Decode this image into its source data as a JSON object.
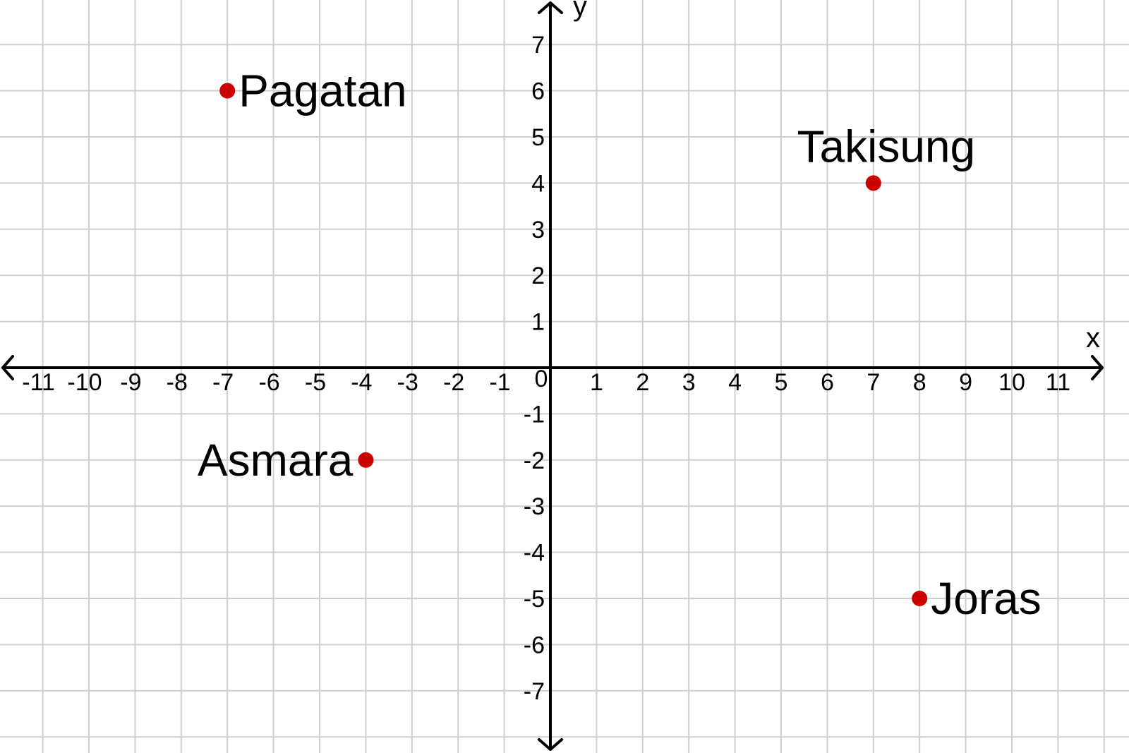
{
  "chart_data": {
    "type": "scatter",
    "title": "",
    "xlabel": "x",
    "ylabel": "y",
    "xlim": [
      -11,
      11
    ],
    "ylim": [
      -7,
      7
    ],
    "grid": true,
    "origin_label": "0",
    "x_ticks": [
      "-11",
      "-10",
      "-9",
      "-8",
      "-7",
      "-6",
      "-5",
      "-4",
      "-3",
      "-2",
      "-1",
      "1",
      "2",
      "3",
      "4",
      "5",
      "6",
      "7",
      "8",
      "9",
      "10",
      "11"
    ],
    "y_ticks": [
      "7",
      "6",
      "5",
      "4",
      "3",
      "2",
      "1",
      "-1",
      "-2",
      "-3",
      "-4",
      "-5",
      "-6",
      "-7"
    ],
    "points": [
      {
        "label": "Pagatan",
        "x": -7,
        "y": 6
      },
      {
        "label": "Takisung",
        "x": 7,
        "y": 4
      },
      {
        "label": "Asmara",
        "x": -4,
        "y": -2
      },
      {
        "label": "Joras",
        "x": 8,
        "y": -5
      }
    ],
    "colors": {
      "grid": "#cfcfcf",
      "axis": "#000000",
      "point": "#cc0000"
    }
  }
}
